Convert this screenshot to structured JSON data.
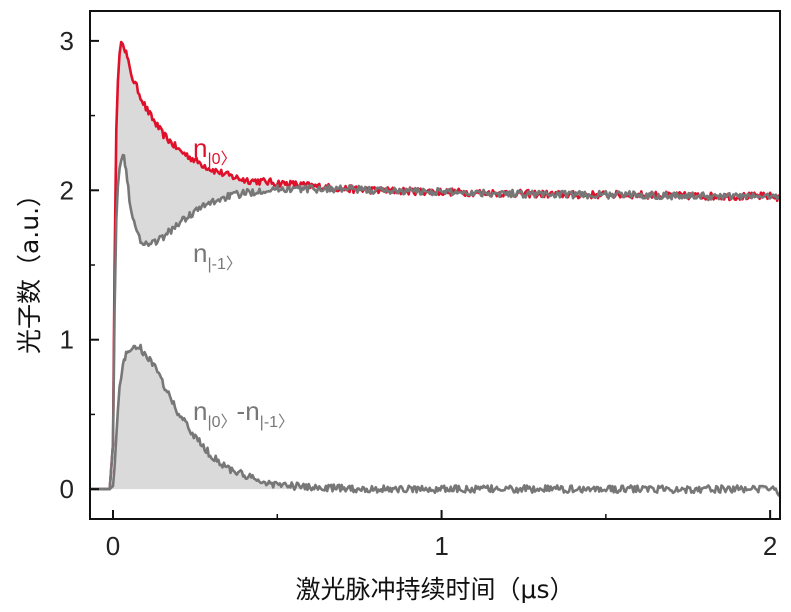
{
  "chart_data": {
    "type": "line",
    "xlabel": "激光脉冲持续时间（μs）",
    "ylabel": "光子数（a.u.）",
    "xlim": [
      -0.07,
      2.03
    ],
    "ylim": [
      -0.2,
      3.2
    ],
    "x_ticks": [
      0,
      1,
      2
    ],
    "x_tick_labels": [
      "0",
      "1",
      "2"
    ],
    "y_ticks": [
      0,
      1,
      2,
      3
    ],
    "y_tick_labels": [
      "0",
      "1",
      "2",
      "3"
    ],
    "grid": false,
    "series": [
      {
        "name": "n|0⟩",
        "label_main": "n",
        "label_sub": "|0〉",
        "color": "#e0102a",
        "fill": false,
        "x": [
          -0.07,
          -0.01,
          0.0,
          0.005,
          0.01,
          0.015,
          0.02,
          0.025,
          0.03,
          0.04,
          0.05,
          0.06,
          0.08,
          0.1,
          0.12,
          0.15,
          0.2,
          0.25,
          0.3,
          0.35,
          0.4,
          0.45,
          0.5,
          0.6,
          0.7,
          0.8,
          1.0,
          1.2,
          1.4,
          1.6,
          1.8,
          2.0,
          2.03
        ],
        "y": [
          0.0,
          0.0,
          0.3,
          1.5,
          2.4,
          2.75,
          2.9,
          2.97,
          3.0,
          2.92,
          2.82,
          2.75,
          2.65,
          2.55,
          2.48,
          2.38,
          2.27,
          2.2,
          2.14,
          2.1,
          2.07,
          2.06,
          2.05,
          2.03,
          2.01,
          2.0,
          1.99,
          1.98,
          1.97,
          1.97,
          1.96,
          1.96,
          1.95
        ]
      },
      {
        "name": "n|-1⟩",
        "label_main": "n",
        "label_sub": "|-1〉",
        "color": "#777777",
        "fill": false,
        "x": [
          -0.07,
          -0.01,
          0.0,
          0.005,
          0.01,
          0.015,
          0.02,
          0.025,
          0.03,
          0.04,
          0.05,
          0.06,
          0.08,
          0.1,
          0.12,
          0.15,
          0.2,
          0.25,
          0.3,
          0.35,
          0.4,
          0.45,
          0.5,
          0.6,
          0.7,
          0.8,
          1.0,
          1.2,
          1.4,
          1.6,
          1.8,
          2.0,
          2.03
        ],
        "y": [
          0.0,
          0.0,
          0.3,
          1.2,
          1.8,
          2.05,
          2.17,
          2.22,
          2.24,
          2.15,
          1.95,
          1.8,
          1.68,
          1.64,
          1.65,
          1.68,
          1.78,
          1.86,
          1.92,
          1.96,
          1.98,
          2.0,
          2.01,
          2.01,
          2.01,
          2.0,
          1.99,
          1.98,
          1.97,
          1.97,
          1.96,
          1.96,
          1.96
        ]
      },
      {
        "name": "n|0⟩-n|-1⟩",
        "label_main": "n",
        "label_sub": "|0〉",
        "label_main2": "-n",
        "label_sub2": "|-1〉",
        "color": "#777777",
        "fill": true,
        "x": [
          -0.07,
          -0.01,
          0.0,
          0.005,
          0.01,
          0.015,
          0.02,
          0.03,
          0.04,
          0.05,
          0.06,
          0.07,
          0.08,
          0.1,
          0.12,
          0.15,
          0.2,
          0.25,
          0.3,
          0.35,
          0.4,
          0.45,
          0.5,
          0.6,
          0.8,
          1.0,
          1.2,
          1.4,
          1.6,
          1.8,
          2.0,
          2.03
        ],
        "y": [
          0.0,
          0.0,
          0.02,
          0.15,
          0.35,
          0.55,
          0.7,
          0.82,
          0.9,
          0.93,
          0.95,
          0.96,
          0.95,
          0.9,
          0.84,
          0.72,
          0.5,
          0.35,
          0.22,
          0.14,
          0.09,
          0.05,
          0.03,
          0.01,
          0.0,
          0.0,
          0.0,
          0.0,
          0.0,
          0.0,
          0.0,
          -0.02
        ]
      }
    ]
  }
}
